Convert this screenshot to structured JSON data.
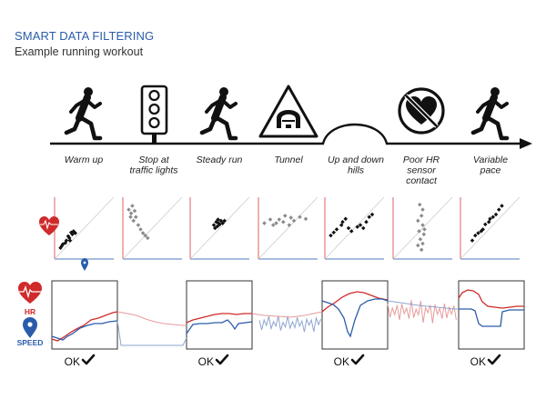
{
  "header": {
    "title": "SMART DATA FILTERING",
    "subtitle": "Example running workout"
  },
  "stages": [
    {
      "label_lines": [
        "Warm up"
      ],
      "icon": "runner-icon"
    },
    {
      "label_lines": [
        "Stop at",
        "traffic lights"
      ],
      "icon": "traffic-light-icon"
    },
    {
      "label_lines": [
        "Steady run"
      ],
      "icon": "runner-icon"
    },
    {
      "label_lines": [
        "Tunnel"
      ],
      "icon": "tunnel-sign-icon"
    },
    {
      "label_lines": [
        "Up and down",
        "hills"
      ],
      "icon": "hill-icon"
    },
    {
      "label_lines": [
        "Poor HR",
        "sensor",
        "contact"
      ],
      "icon": "no-heart-icon"
    },
    {
      "label_lines": [
        "Variable",
        "pace"
      ],
      "icon": "runner-icon"
    }
  ],
  "legend": {
    "hr_label": "HR",
    "speed_label": "SPEED",
    "hr_icon": "heart-pulse-icon",
    "speed_icon": "location-pin-icon"
  },
  "ok_boxes": [
    {
      "label": "OK",
      "icon": "checkmark-icon"
    },
    {
      "label": "OK",
      "icon": "checkmark-icon"
    },
    {
      "label": "OK",
      "icon": "checkmark-icon"
    },
    {
      "label": "OK",
      "icon": "checkmark-icon"
    }
  ],
  "colors": {
    "title": "#2a5caa",
    "hr": "#d02a2a",
    "speed": "#2a5caa",
    "scatter_good": "#111111",
    "scatter_bad": "#8a8a8a"
  }
}
